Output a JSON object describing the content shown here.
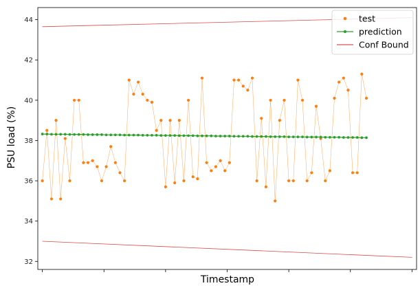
{
  "chart_data": {
    "type": "line",
    "xlabel": "Timestamp",
    "ylabel": "PSU load (%)",
    "xlim": [
      -1,
      82
    ],
    "ylim": [
      31.6,
      44.6
    ],
    "yticks": [
      32,
      34,
      36,
      38,
      40,
      42,
      44
    ],
    "yticklabels": [
      "32",
      "34",
      "36",
      "38",
      "40",
      "42",
      "44"
    ],
    "xticks": [
      0,
      13.5,
      27,
      40.5,
      54,
      67.5,
      81
    ],
    "grid": false,
    "legend_position": "top-right",
    "colors": {
      "test": "#ff7f0e",
      "prediction": "#2ca02c",
      "bound": "#d62728",
      "axis": "#000000"
    },
    "legend": [
      {
        "label": "test",
        "style": "dots"
      },
      {
        "label": "prediction",
        "style": "line-dots"
      },
      {
        "label": "Conf Bound",
        "style": "line"
      }
    ],
    "series": [
      {
        "name": "test",
        "x_start": 0,
        "values": [
          36.0,
          38.5,
          35.1,
          39.0,
          35.1,
          38.1,
          36.0,
          40.0,
          40.0,
          36.9,
          36.9,
          37.0,
          36.7,
          36.0,
          36.7,
          37.7,
          36.9,
          36.4,
          36.0,
          41.0,
          40.3,
          40.9,
          40.3,
          40.0,
          39.9,
          38.5,
          39.0,
          35.7,
          39.0,
          35.9,
          39.0,
          36.0,
          40.0,
          36.2,
          36.1,
          41.1,
          36.9,
          36.5,
          36.7,
          37.0,
          36.5,
          36.9,
          41.0,
          41.0,
          40.7,
          40.5,
          41.1,
          36.0,
          39.1,
          35.7,
          40.0,
          35.0,
          39.0,
          40.0,
          36.0,
          36.0,
          41.0,
          40.0,
          36.0,
          36.4,
          39.7,
          38.1,
          36.0,
          36.5,
          40.1,
          40.9,
          41.1,
          40.5,
          36.4,
          36.4,
          41.3,
          40.1
        ]
      },
      {
        "name": "prediction",
        "x_start": 0,
        "values": [
          38.32,
          38.32,
          38.31,
          38.31,
          38.31,
          38.31,
          38.3,
          38.3,
          38.3,
          38.3,
          38.29,
          38.29,
          38.29,
          38.29,
          38.28,
          38.28,
          38.28,
          38.28,
          38.27,
          38.27,
          38.27,
          38.27,
          38.26,
          38.26,
          38.26,
          38.26,
          38.25,
          38.25,
          38.25,
          38.25,
          38.24,
          38.24,
          38.24,
          38.24,
          38.23,
          38.23,
          38.23,
          38.23,
          38.22,
          38.22,
          38.22,
          38.22,
          38.21,
          38.21,
          38.21,
          38.21,
          38.2,
          38.2,
          38.2,
          38.2,
          38.19,
          38.19,
          38.19,
          38.19,
          38.18,
          38.18,
          38.18,
          38.18,
          38.17,
          38.17,
          38.17,
          38.17,
          38.16,
          38.16,
          38.16,
          38.16,
          38.15,
          38.15,
          38.15,
          38.15,
          38.14,
          38.14
        ]
      },
      {
        "name": "Conf Bound",
        "x": [
          0,
          81
        ],
        "values": [
          43.65,
          44.1
        ]
      },
      {
        "name": "Conf Bound",
        "x": [
          0,
          81
        ],
        "values": [
          33.0,
          32.2
        ]
      }
    ]
  }
}
